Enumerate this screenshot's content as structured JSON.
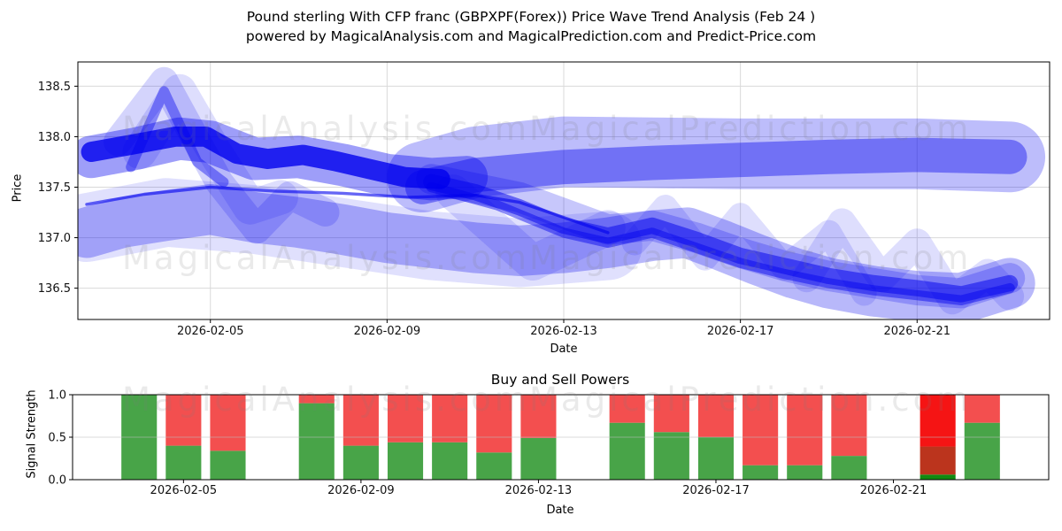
{
  "title": {
    "line1": "Pound sterling With CFP franc (GBPXPF(Forex)) Price Wave Trend Analysis (Feb 24 )",
    "line2": "powered by MagicalAnalysis.com and MagicalPrediction.com and Predict-Price.com"
  },
  "watermarks": {
    "left": "MagicalAnalysis.com",
    "right": "MagicalPrediction.com"
  },
  "colors": {
    "wave": "#0000ee",
    "buy": "#48a448",
    "sell": "#f34f4f",
    "grid": "#d9d9d9",
    "grid_over_bars": "rgba(190,190,190,0.55)",
    "spine": "#000000",
    "tick_text": "#111111"
  },
  "chart_data": [
    {
      "type": "area",
      "title": "",
      "xlabel": "Date",
      "ylabel": "Price",
      "xlim_days": [
        2,
        24
      ],
      "ylim": [
        136.19,
        138.74
      ],
      "grid": true,
      "x_ticks": [
        {
          "day": 5,
          "label": "2026-02-05"
        },
        {
          "day": 9,
          "label": "2026-02-09"
        },
        {
          "day": 13,
          "label": "2026-02-13"
        },
        {
          "day": 17,
          "label": "2026-02-17"
        },
        {
          "day": 21,
          "label": "2026-02-21"
        }
      ],
      "y_ticks": [
        {
          "v": 136.5,
          "label": "136.5"
        },
        {
          "v": 137.0,
          "label": "137.0"
        },
        {
          "v": 137.5,
          "label": "137.5"
        },
        {
          "v": 138.0,
          "label": "138.0"
        },
        {
          "v": 138.5,
          "label": "138.5"
        }
      ],
      "bands": [
        {
          "name": "lower-light-wide",
          "w": 0.68,
          "o": 0.12,
          "pts": [
            [
              2.2,
              137.1
            ],
            [
              4,
              137.25
            ],
            [
              6,
              137.18
            ],
            [
              8,
              137.05
            ],
            [
              10,
              136.92
            ],
            [
              12,
              136.85
            ],
            [
              14,
              136.92
            ]
          ]
        },
        {
          "name": "lower-light",
          "w": 0.5,
          "o": 0.28,
          "pts": [
            [
              2.2,
              137.05
            ],
            [
              3,
              137.15
            ],
            [
              4,
              137.22
            ],
            [
              5,
              137.28
            ],
            [
              6,
              137.2
            ],
            [
              7,
              137.15
            ],
            [
              8,
              137.08
            ],
            [
              9,
              137.0
            ],
            [
              10,
              136.95
            ],
            [
              11,
              136.9
            ],
            [
              12,
              136.87
            ],
            [
              13,
              136.9
            ],
            [
              14,
              136.95
            ],
            [
              15,
              137.02
            ],
            [
              15.8,
              137.05
            ],
            [
              16.6,
              136.92
            ],
            [
              17.4,
              136.78
            ],
            [
              18.2,
              136.65
            ],
            [
              19,
              136.55
            ],
            [
              20,
              136.47
            ],
            [
              21,
              136.42
            ],
            [
              22,
              136.4
            ],
            [
              23.1,
              136.55
            ]
          ]
        },
        {
          "name": "upper-light",
          "w": 0.7,
          "o": 0.26,
          "pts": [
            [
              9.8,
              137.6
            ],
            [
              11,
              137.75
            ],
            [
              13,
              137.85
            ],
            [
              15,
              137.84
            ],
            [
              17,
              137.83
            ],
            [
              19,
              137.83
            ],
            [
              21,
              137.83
            ],
            [
              23.1,
              137.8
            ]
          ]
        },
        {
          "name": "upper-dark",
          "w": 0.34,
          "o": 0.4,
          "pts": [
            [
              9.8,
              137.5
            ],
            [
              11,
              137.62
            ],
            [
              13,
              137.7
            ],
            [
              15,
              137.74
            ],
            [
              17,
              137.77
            ],
            [
              19,
              137.8
            ],
            [
              21,
              137.82
            ],
            [
              23.1,
              137.8
            ]
          ]
        },
        {
          "name": "cluster-halo",
          "w": 0.42,
          "o": 0.38,
          "pts": [
            [
              2.3,
              137.8
            ],
            [
              3.3,
              137.88
            ],
            [
              4.3,
              137.98
            ],
            [
              5,
              137.95
            ],
            [
              6,
              137.78
            ],
            [
              7,
              137.8
            ],
            [
              8,
              137.72
            ],
            [
              9,
              137.62
            ],
            [
              10,
              137.58
            ],
            [
              10.8,
              137.6
            ]
          ]
        },
        {
          "name": "cluster-core",
          "w": 0.2,
          "o": 0.8,
          "pts": [
            [
              2.3,
              137.85
            ],
            [
              3.2,
              137.92
            ],
            [
              4.2,
              138.0
            ],
            [
              4.9,
              138.0
            ],
            [
              5.6,
              137.83
            ],
            [
              6.3,
              137.78
            ],
            [
              7.1,
              137.82
            ],
            [
              7.8,
              137.76
            ],
            [
              8.6,
              137.68
            ],
            [
              9.4,
              137.6
            ],
            [
              10.2,
              137.58
            ]
          ]
        },
        {
          "name": "spike-medium",
          "w": 0.1,
          "o": 0.4,
          "pts": [
            [
              3.2,
              137.7
            ],
            [
              3.95,
              138.45
            ],
            [
              4.7,
              137.75
            ],
            [
              5.3,
              137.55
            ]
          ]
        },
        {
          "name": "spike-light-big",
          "w": 0.28,
          "o": 0.17,
          "pts": [
            [
              2.9,
              137.95
            ],
            [
              3.95,
              138.55
            ],
            [
              5.2,
              137.55
            ],
            [
              6.05,
              137.08
            ],
            [
              6.8,
              137.42
            ],
            [
              7.6,
              137.25
            ]
          ]
        },
        {
          "name": "spike-light-2",
          "w": 0.34,
          "o": 0.13,
          "pts": [
            [
              3.4,
              137.85
            ],
            [
              4.3,
              138.45
            ],
            [
              5.1,
              137.85
            ],
            [
              5.9,
              137.3
            ],
            [
              6.6,
              137.4
            ]
          ]
        },
        {
          "name": "thin-mid-line",
          "w": 0.03,
          "o": 0.6,
          "pts": [
            [
              2.2,
              137.33
            ],
            [
              3.5,
              137.43
            ],
            [
              5,
              137.5
            ],
            [
              6.5,
              137.46
            ],
            [
              8,
              137.44
            ],
            [
              9.5,
              137.4
            ],
            [
              11,
              137.42
            ],
            [
              12,
              137.35
            ],
            [
              13,
              137.2
            ],
            [
              14,
              137.05
            ]
          ]
        },
        {
          "name": "braid-1",
          "w": 0.16,
          "o": 0.5,
          "pts": [
            [
              10,
              137.55
            ],
            [
              11,
              137.45
            ],
            [
              12,
              137.3
            ],
            [
              13,
              137.12
            ],
            [
              14,
              137.02
            ],
            [
              15,
              137.12
            ],
            [
              16,
              136.98
            ],
            [
              17,
              136.82
            ],
            [
              18,
              136.72
            ],
            [
              19,
              136.62
            ],
            [
              20,
              136.55
            ],
            [
              21,
              136.5
            ],
            [
              22,
              136.44
            ],
            [
              23.1,
              136.55
            ]
          ]
        },
        {
          "name": "braid-2",
          "w": 0.1,
          "o": 0.45,
          "pts": [
            [
              10,
              137.5
            ],
            [
              11.5,
              137.32
            ],
            [
              13,
              137.05
            ],
            [
              14,
              136.95
            ],
            [
              15,
              137.05
            ],
            [
              16,
              136.9
            ],
            [
              17,
              136.75
            ],
            [
              18,
              136.64
            ],
            [
              19,
              136.55
            ],
            [
              20,
              136.48
            ],
            [
              21,
              136.43
            ],
            [
              22,
              136.38
            ],
            [
              23.1,
              136.5
            ]
          ]
        },
        {
          "name": "braid-3",
          "w": 0.3,
          "o": 0.22,
          "pts": [
            [
              10,
              137.58
            ],
            [
              12,
              137.4
            ],
            [
              14,
              137.08
            ],
            [
              15,
              137.12
            ],
            [
              16,
              137.0
            ],
            [
              17,
              136.85
            ],
            [
              18,
              136.72
            ],
            [
              19,
              136.62
            ],
            [
              20,
              136.55
            ],
            [
              21,
              136.48
            ],
            [
              22,
              136.45
            ],
            [
              23.1,
              136.6
            ]
          ]
        },
        {
          "name": "light-v-mid",
          "w": 0.35,
          "o": 0.13,
          "pts": [
            [
              10.5,
              137.45
            ],
            [
              12.3,
              136.75
            ],
            [
              14,
              137.1
            ]
          ]
        },
        {
          "name": "zigzag-1",
          "w": 0.25,
          "o": 0.13,
          "pts": [
            [
              14.6,
              136.95
            ],
            [
              15.3,
              137.3
            ],
            [
              16.2,
              136.8
            ],
            [
              17,
              137.22
            ],
            [
              18,
              136.7
            ],
            [
              19,
              137.05
            ],
            [
              19.8,
              136.45
            ]
          ]
        },
        {
          "name": "zigzag-2",
          "w": 0.28,
          "o": 0.13,
          "pts": [
            [
              18.5,
              136.6
            ],
            [
              19.3,
              137.15
            ],
            [
              20.2,
              136.6
            ],
            [
              21,
              136.95
            ],
            [
              21.8,
              136.38
            ],
            [
              22.6,
              136.65
            ],
            [
              23.1,
              136.42
            ]
          ]
        }
      ]
    },
    {
      "type": "bar",
      "title": "Buy and Sell Powers",
      "xlabel": "Date",
      "ylabel": "Signal Strength",
      "xlim_days": [
        2.5,
        24.5
      ],
      "ylim": [
        0,
        1
      ],
      "bar_width_days": 0.8,
      "x_ticks": [
        {
          "day": 5,
          "label": "2026-02-05"
        },
        {
          "day": 9,
          "label": "2026-02-09"
        },
        {
          "day": 13,
          "label": "2026-02-13"
        },
        {
          "day": 17,
          "label": "2026-02-17"
        },
        {
          "day": 21,
          "label": "2026-02-21"
        }
      ],
      "y_ticks": [
        {
          "v": 0.0,
          "label": "0.0"
        },
        {
          "v": 0.5,
          "label": "0.5"
        },
        {
          "v": 1.0,
          "label": "1.0"
        }
      ],
      "bars": [
        {
          "day": 4,
          "buy": 1.0,
          "sell": 0.0
        },
        {
          "day": 5,
          "buy": 0.4,
          "sell": 0.6
        },
        {
          "day": 6,
          "buy": 0.34,
          "sell": 0.66
        },
        {
          "day": 8,
          "buy": 0.9,
          "sell": 0.1
        },
        {
          "day": 9,
          "buy": 0.4,
          "sell": 0.6
        },
        {
          "day": 10,
          "buy": 0.44,
          "sell": 0.56
        },
        {
          "day": 11,
          "buy": 0.44,
          "sell": 0.56
        },
        {
          "day": 12,
          "buy": 0.32,
          "sell": 0.68
        },
        {
          "day": 13,
          "buy": 0.49,
          "sell": 0.51
        },
        {
          "day": 15,
          "buy": 0.67,
          "sell": 0.33
        },
        {
          "day": 16,
          "buy": 0.56,
          "sell": 0.44
        },
        {
          "day": 17,
          "buy": 0.5,
          "sell": 0.5
        },
        {
          "day": 18,
          "buy": 0.17,
          "sell": 0.83
        },
        {
          "day": 19,
          "buy": 0.17,
          "sell": 0.83
        },
        {
          "day": 20,
          "buy": 0.28,
          "sell": 0.72
        },
        {
          "day": 23,
          "buy": 0.67,
          "sell": 0.33
        }
      ],
      "special_bar": {
        "day": 22,
        "segments": [
          {
            "from": 0.0,
            "to": 0.06,
            "color": "#118a11"
          },
          {
            "from": 0.06,
            "to": 0.39,
            "color": "#bb341d"
          },
          {
            "from": 0.39,
            "to": 1.0,
            "color": "#f51414"
          }
        ]
      }
    }
  ]
}
